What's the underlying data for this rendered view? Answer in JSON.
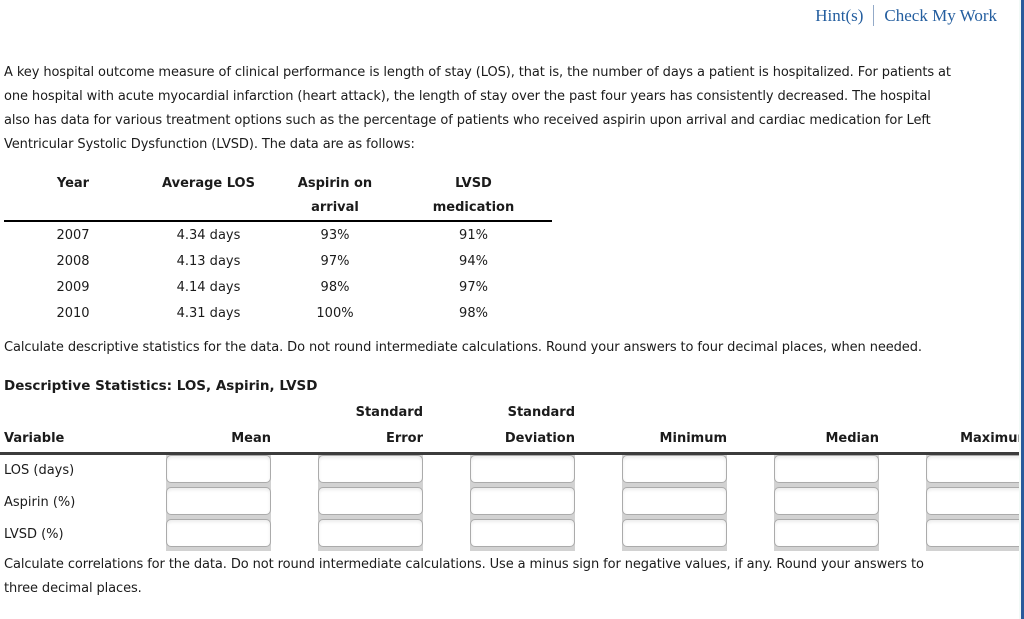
{
  "links": {
    "hints": "Hint(s)",
    "check_my_work": "Check My Work"
  },
  "intro": {
    "lines": [
      "A key hospital outcome measure of clinical performance is length of stay (LOS), that is, the number of days a patient is hospitalized. For patients at",
      "one hospital with acute myocardial infarction (heart attack), the length of stay over the past four years has consistently decreased. The hospital",
      "also has data for various treatment options such as the percentage of patients who received aspirin upon arrival and cardiac medication for Left",
      "Ventricular Systolic Dysfunction (LVSD). The data are as follows:"
    ]
  },
  "data_table": {
    "headers": [
      {
        "top": "Year",
        "bottom": ""
      },
      {
        "top": "Average LOS",
        "bottom": ""
      },
      {
        "top": "Aspirin on",
        "bottom": "arrival"
      },
      {
        "top": "LVSD",
        "bottom": "medication"
      }
    ],
    "rows": [
      [
        "2007",
        "4.34 days",
        "93%",
        "91%"
      ],
      [
        "2008",
        "4.13 days",
        "97%",
        "94%"
      ],
      [
        "2009",
        "4.14 days",
        "98%",
        "97%"
      ],
      [
        "2010",
        "4.31 days",
        "100%",
        "98%"
      ]
    ]
  },
  "instructions": {
    "descriptive": "Calculate descriptive statistics for the data. Do not round intermediate calculations. Round your answers to four decimal places, when needed.",
    "correlation_lines": [
      "Calculate correlations for the data. Do not round intermediate calculations. Use a minus sign for negative values, if any. Round your answers to",
      "three decimal places."
    ]
  },
  "stats_section": {
    "title": "Descriptive Statistics: LOS, Aspirin, LVSD",
    "col1_header": "Variable",
    "columns": [
      {
        "top": "",
        "bottom": "Mean"
      },
      {
        "top": "Standard",
        "bottom": "Error"
      },
      {
        "top": "Standard",
        "bottom": "Deviation"
      },
      {
        "top": "",
        "bottom": "Minimum"
      },
      {
        "top": "",
        "bottom": "Median"
      },
      {
        "top": "",
        "bottom": "Maximum"
      }
    ],
    "row_labels": [
      "LOS (days)",
      "Aspirin (%)",
      "LVSD (%)"
    ]
  },
  "colors": {
    "link_blue": "#245E9F",
    "right_edge_bar": "#2A5A9B",
    "input_tray_gray": "#D2D2D2",
    "table_rule": "#000000"
  }
}
